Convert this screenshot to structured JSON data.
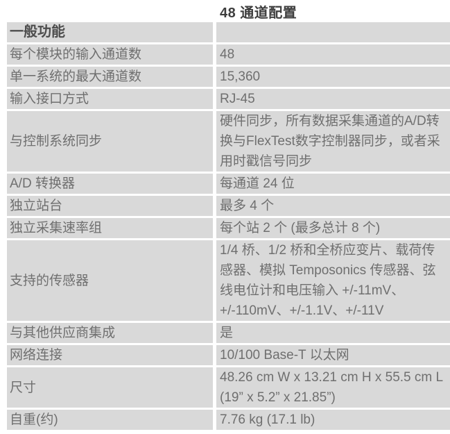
{
  "page": {
    "title": "48 通道配置"
  },
  "table": {
    "section_header": "一般功能",
    "rows": [
      {
        "label": "每个模块的输入通道数",
        "value": "48"
      },
      {
        "label": "单一系统的最大通道数",
        "value": "15,360"
      },
      {
        "label": "输入接口方式",
        "value": "RJ-45"
      },
      {
        "label": "与控制系统同步",
        "value": "硬件同步，所有数据采集通道的A/D转换与FlexTest数字控制器同步，或者采用时戳信号同步"
      },
      {
        "label": "A/D 转换器",
        "value": "每通道 24 位"
      },
      {
        "label": "独立站台",
        "value": "最多 4 个"
      },
      {
        "label": "独立采集速率组",
        "value": "每个站 2 个 (最多总计 8 个)"
      },
      {
        "label": "支持的传感器",
        "value": "1/4 桥、1/2 桥和全桥应变片、载荷传感器、模拟 Temposonics 传感器、弦线电位计和电压输入 +/-11mV、+/-110mV、+/-1.1V、+/-11V"
      },
      {
        "label": "与其他供应商集成",
        "value": "是"
      },
      {
        "label": "网络连接",
        "value": "10/100 Base-T 以太网"
      },
      {
        "label": "尺寸",
        "value": "48.26 cm W x 13.21 cm H x 55.5 cm L (19” x 5.2” x 21.85”)"
      },
      {
        "label": "自重(约)",
        "value": "7.76 kg (17.1 lb)"
      }
    ]
  },
  "colors": {
    "cell_bg": "#d9d9d9",
    "body_text": "#6f6f6f",
    "header_text": "#4d4d4d",
    "title_text": "#3e3e3e"
  }
}
